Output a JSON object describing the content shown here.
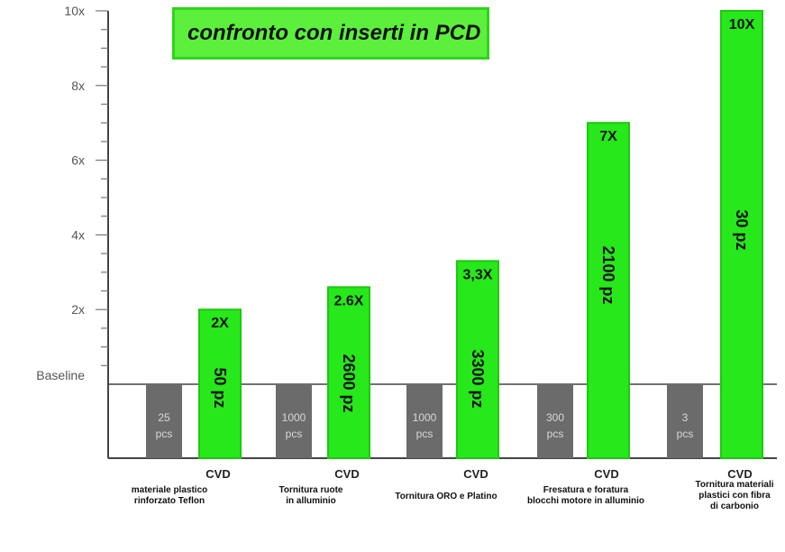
{
  "chart_data": {
    "type": "bar",
    "title": "confronto con inserti in PCD",
    "ylim": [
      0,
      10
    ],
    "y_ticks": [
      {
        "label": "10x",
        "value": 10
      },
      {
        "label": "8x",
        "value": 8
      },
      {
        "label": "6x",
        "value": 6
      },
      {
        "label": "4x",
        "value": 4
      },
      {
        "label": "2x",
        "value": 2
      }
    ],
    "baseline_label": "Baseline",
    "baseline_value": 0,
    "groups": [
      {
        "category": "materiale plastico\nrinforzato Teflon",
        "cvd_label": "CVD",
        "baseline_text": "25\npcs",
        "pcd_value": 2,
        "pcd_multiplier": "2X",
        "pcd_pieces": "50 pz"
      },
      {
        "category": "Tornitura ruote\nin alluminio",
        "cvd_label": "CVD",
        "baseline_text": "1000\npcs",
        "pcd_value": 2.6,
        "pcd_multiplier": "2.6X",
        "pcd_pieces": "2600 pz"
      },
      {
        "category": "Tornitura ORO e Platino",
        "cvd_label": "CVD",
        "baseline_text": "1000\npcs",
        "pcd_value": 3.3,
        "pcd_multiplier": "3,3X",
        "pcd_pieces": "3300 pz"
      },
      {
        "category": "Fresatura e foratura\nblocchi motore in alluminio",
        "cvd_label": "CVD",
        "baseline_text": "300\npcs",
        "pcd_value": 7,
        "pcd_multiplier": "7X",
        "pcd_pieces": "2100 pz"
      },
      {
        "category": "Tornitura materiali\nplastici con fibra\ndi carbonio",
        "cvd_label": "CVD",
        "baseline_text": "3\npcs",
        "pcd_value": 10,
        "pcd_multiplier": "10X",
        "pcd_pieces": "30 pz"
      }
    ],
    "colors": {
      "pcd": "#26e81a",
      "pcd_border": "#1ec712",
      "baseline_bar": "#6b6b6b",
      "axis": "#444444"
    }
  }
}
